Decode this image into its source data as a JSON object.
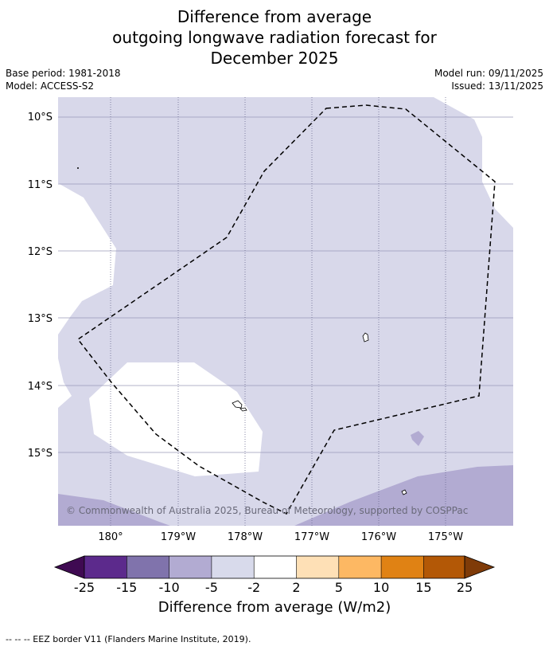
{
  "title": {
    "line1": "Difference from average",
    "line2": "outgoing longwave radiation forecast for",
    "line3": "December 2025"
  },
  "meta": {
    "base_period": "Base period: 1981-2018",
    "model": "Model: ACCESS-S2",
    "model_run": "Model run: 09/11/2025",
    "issued": "Issued: 13/11/2025"
  },
  "map": {
    "lat_labels": [
      "10°S",
      "11°S",
      "12°S",
      "13°S",
      "14°S",
      "15°S"
    ],
    "lon_labels": [
      "180°",
      "179°W",
      "178°W",
      "177°W",
      "176°W",
      "175°W"
    ],
    "copyright": "© Commonwealth of Australia 2025, Bureau of Meteorology, supported by COSPPac",
    "colors": {
      "light_purple": "#d8d8ea",
      "mid_purple": "#b2abd2",
      "neutral": "#ffffff"
    }
  },
  "colorbar": {
    "tick_labels": [
      "-25",
      "-15",
      "-10",
      "-5",
      "-2",
      "2",
      "5",
      "10",
      "15",
      "25"
    ],
    "colors": [
      "#3f0a52",
      "#5c2a8c",
      "#8073ac",
      "#b2abd2",
      "#d8daeb",
      "#ffffff",
      "#fee0b6",
      "#fdb863",
      "#e08214",
      "#b35806",
      "#7f3b08"
    ],
    "label": "Difference from average (W/m2)"
  },
  "footer": "--  --  -- EEZ border V11 (Flanders Marine Institute, 2019)."
}
